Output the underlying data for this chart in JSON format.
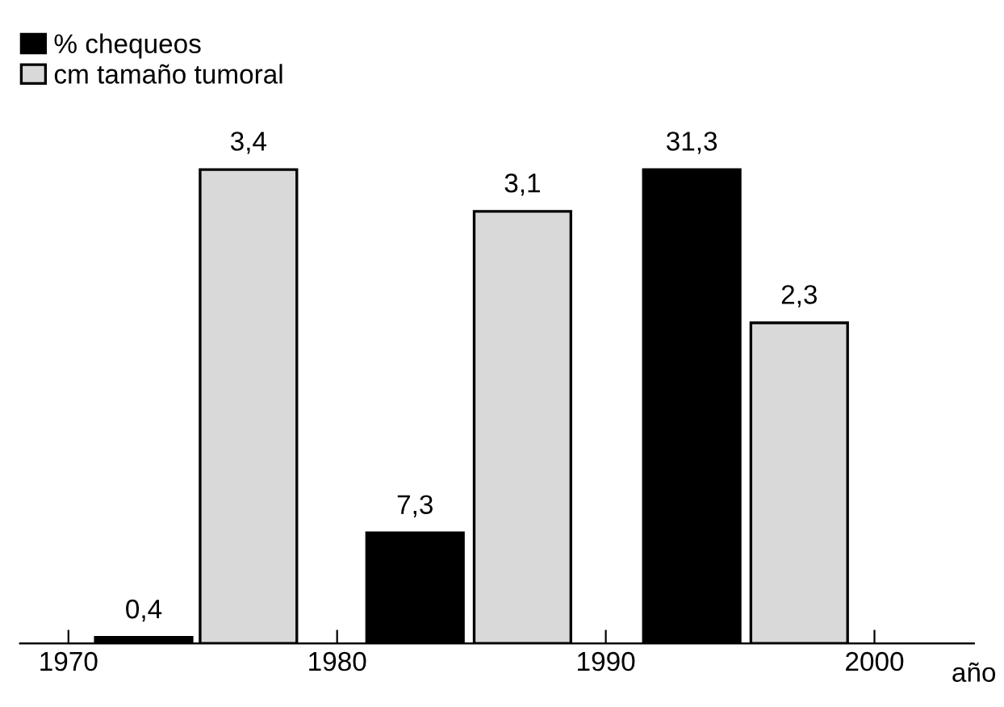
{
  "chart_data": {
    "type": "bar",
    "xlabel": "año",
    "xlim": [
      1968.2,
      2003.7
    ],
    "xticks": [
      1970,
      1980,
      1990,
      2000
    ],
    "series": [
      {
        "name": "% chequeos",
        "color": "#000000",
        "x": [
          1972.8,
          1982.9,
          1993.2
        ],
        "values": [
          0.4,
          7.3,
          31.3
        ],
        "value_labels": [
          "0,4",
          "7,3",
          "31,3"
        ]
      },
      {
        "name": "cm tamaño tumoral",
        "color": "#d9d9d9",
        "axis": "y2",
        "x": [
          1976.7,
          1986.9,
          1997.2
        ],
        "values": [
          3.4,
          3.1,
          2.3
        ],
        "value_labels": [
          "3,4",
          "3,1",
          "2,3"
        ]
      }
    ],
    "legend": "top left",
    "grid": false,
    "tick_labels": "x"
  }
}
